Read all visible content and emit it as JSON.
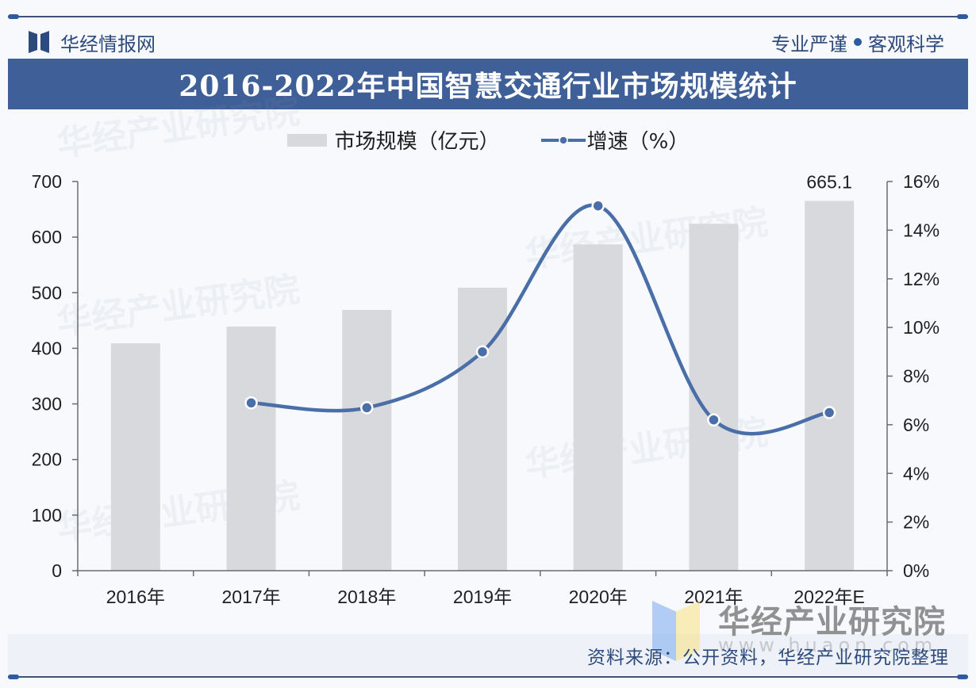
{
  "header": {
    "brand_name": "华经情报网",
    "slogan_left": "专业严谨",
    "slogan_right": "客观科学",
    "title": "2016-2022年中国智慧交通行业市场规模统计"
  },
  "legend": {
    "bar_label": "市场规模（亿元）",
    "line_label": "增速（%）"
  },
  "colors": {
    "bar": "#d8d9dc",
    "line": "#4a6ea8",
    "title_bg": "#3f5f98",
    "brand": "#2d4a7c"
  },
  "footer": {
    "source": "资料来源：公开资料，华经产业研究院整理",
    "watermark_brand": "华经产业研究院",
    "watermark_url": "www.huaon.com"
  },
  "chart_data": {
    "type": "bar+line",
    "title": "2016-2022年中国智慧交通行业市场规模统计",
    "categories": [
      "2016年",
      "2017年",
      "2018年",
      "2019年",
      "2020年",
      "2021年",
      "2022年E"
    ],
    "series": [
      {
        "name": "市场规模（亿元）",
        "type": "bar",
        "axis": "left",
        "values": [
          409,
          439,
          469,
          509,
          587,
          624,
          665.1
        ]
      },
      {
        "name": "增速（%）",
        "type": "line",
        "axis": "right",
        "values": [
          null,
          6.9,
          6.7,
          9.0,
          15.0,
          6.2,
          6.5
        ]
      }
    ],
    "data_labels": [
      {
        "category": "2022年E",
        "value": "665.1"
      }
    ],
    "left_axis": {
      "ylim": [
        0,
        700
      ],
      "ticks": [
        "0",
        "100",
        "200",
        "300",
        "400",
        "500",
        "600",
        "700"
      ]
    },
    "right_axis": {
      "ylim": [
        0,
        16
      ],
      "ticks": [
        "0%",
        "2%",
        "4%",
        "6%",
        "8%",
        "10%",
        "12%",
        "14%",
        "16%"
      ]
    },
    "grid": false,
    "legend_position": "top"
  }
}
